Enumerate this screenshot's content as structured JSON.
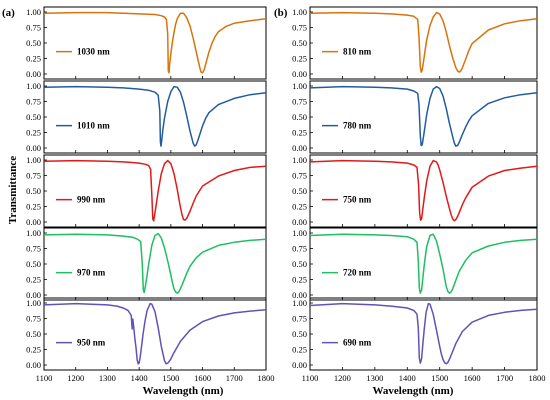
{
  "figure": {
    "ylabel": "Transmittance",
    "xlabel": "Wavelength (nm)",
    "panel_a_label": "(a)",
    "panel_b_label": "(b)"
  },
  "chart_data": [
    {
      "type": "line",
      "panel": "(a)",
      "xlabel": "Wavelength (nm)",
      "ylabel": "Transmittance",
      "xlim": [
        1100,
        1800
      ],
      "ylim": [
        0,
        1
      ],
      "xticks": [
        "1100",
        "1200",
        "1300",
        "1400",
        "1500",
        "1600",
        "1700",
        "1800"
      ],
      "yticks": [
        "0.00",
        "0.25",
        "0.50",
        "0.75",
        "1.00"
      ],
      "legend_placement": "lower-left",
      "series": [
        {
          "name": "1030 nm",
          "color": "#D9730D",
          "x": [
            1100,
            1200,
            1250,
            1300,
            1350,
            1400,
            1450,
            1470,
            1480,
            1486,
            1490,
            1492,
            1494,
            1496,
            1500,
            1505,
            1510,
            1515,
            1520,
            1530,
            1540,
            1550,
            1560,
            1570,
            1580,
            1590,
            1595,
            1600,
            1605,
            1610,
            1620,
            1630,
            1640,
            1650,
            1675,
            1700,
            1750,
            1800
          ],
          "y": [
            0.98,
            0.99,
            0.99,
            0.99,
            0.98,
            0.97,
            0.96,
            0.94,
            0.92,
            0.88,
            0.65,
            0.05,
            0.02,
            0.15,
            0.33,
            0.52,
            0.67,
            0.8,
            0.89,
            0.98,
            0.98,
            0.91,
            0.78,
            0.58,
            0.36,
            0.13,
            0.03,
            0.02,
            0.07,
            0.16,
            0.35,
            0.5,
            0.61,
            0.68,
            0.77,
            0.82,
            0.86,
            0.89
          ]
        },
        {
          "name": "1010 nm",
          "color": "#235C9E",
          "x": [
            1100,
            1200,
            1300,
            1350,
            1400,
            1430,
            1450,
            1460,
            1465,
            1467,
            1469,
            1471,
            1475,
            1480,
            1490,
            1500,
            1510,
            1520,
            1530,
            1540,
            1550,
            1560,
            1570,
            1575,
            1580,
            1585,
            1590,
            1600,
            1610,
            1620,
            1650,
            1700,
            1750,
            1800
          ],
          "y": [
            0.98,
            0.99,
            0.98,
            0.97,
            0.95,
            0.93,
            0.9,
            0.85,
            0.6,
            0.1,
            0.03,
            0.12,
            0.3,
            0.48,
            0.75,
            0.91,
            0.99,
            0.98,
            0.9,
            0.74,
            0.52,
            0.28,
            0.08,
            0.03,
            0.05,
            0.12,
            0.2,
            0.36,
            0.48,
            0.57,
            0.7,
            0.8,
            0.86,
            0.89
          ]
        },
        {
          "name": "990 nm",
          "color": "#E01A1A",
          "x": [
            1100,
            1200,
            1300,
            1350,
            1400,
            1420,
            1430,
            1436,
            1440,
            1443,
            1446,
            1450,
            1455,
            1460,
            1470,
            1480,
            1490,
            1500,
            1510,
            1520,
            1525,
            1530,
            1535,
            1540,
            1545,
            1550,
            1560,
            1570,
            1580,
            1600,
            1650,
            1700,
            1750,
            1800
          ],
          "y": [
            0.98,
            0.99,
            0.98,
            0.97,
            0.95,
            0.93,
            0.91,
            0.85,
            0.45,
            0.05,
            0.02,
            0.15,
            0.32,
            0.5,
            0.78,
            0.94,
            0.99,
            0.94,
            0.78,
            0.53,
            0.38,
            0.24,
            0.12,
            0.04,
            0.03,
            0.06,
            0.17,
            0.3,
            0.42,
            0.58,
            0.74,
            0.83,
            0.88,
            0.9
          ]
        },
        {
          "name": "970 nm",
          "color": "#1FBE62",
          "x": [
            1100,
            1200,
            1300,
            1350,
            1380,
            1395,
            1405,
            1410,
            1413,
            1416,
            1420,
            1425,
            1430,
            1440,
            1450,
            1460,
            1470,
            1480,
            1490,
            1500,
            1505,
            1510,
            1515,
            1520,
            1525,
            1530,
            1540,
            1550,
            1560,
            1580,
            1600,
            1650,
            1700,
            1750,
            1800
          ],
          "y": [
            0.97,
            0.98,
            0.97,
            0.95,
            0.93,
            0.9,
            0.86,
            0.5,
            0.08,
            0.04,
            0.15,
            0.32,
            0.5,
            0.8,
            0.96,
            0.99,
            0.92,
            0.76,
            0.55,
            0.32,
            0.2,
            0.1,
            0.05,
            0.03,
            0.05,
            0.1,
            0.22,
            0.35,
            0.46,
            0.6,
            0.69,
            0.8,
            0.85,
            0.88,
            0.9
          ]
        },
        {
          "name": "950 nm",
          "color": "#6251B8",
          "x": [
            1100,
            1150,
            1200,
            1250,
            1300,
            1330,
            1350,
            1365,
            1375,
            1378,
            1380,
            1383,
            1386,
            1390,
            1394,
            1397,
            1400,
            1403,
            1407,
            1412,
            1418,
            1425,
            1435,
            1440,
            1450,
            1460,
            1470,
            1480,
            1485,
            1490,
            1495,
            1500,
            1510,
            1530,
            1560,
            1600,
            1650,
            1700,
            1750,
            1800
          ],
          "y": [
            0.97,
            0.98,
            0.99,
            0.98,
            0.97,
            0.95,
            0.92,
            0.88,
            0.8,
            0.58,
            0.74,
            0.6,
            0.45,
            0.28,
            0.08,
            0.02,
            0.03,
            0.12,
            0.28,
            0.48,
            0.7,
            0.88,
            0.99,
            0.98,
            0.86,
            0.6,
            0.3,
            0.07,
            0.02,
            0.03,
            0.06,
            0.1,
            0.2,
            0.38,
            0.56,
            0.7,
            0.79,
            0.84,
            0.87,
            0.89
          ]
        }
      ]
    },
    {
      "type": "line",
      "panel": "(b)",
      "xlabel": "Wavelength (nm)",
      "ylabel": "",
      "xlim": [
        1100,
        1800
      ],
      "ylim": [
        0,
        1
      ],
      "xticks": [
        "1100",
        "1200",
        "1300",
        "1400",
        "1500",
        "1600",
        "1700",
        "1800"
      ],
      "yticks": [
        "0.00",
        "0.25",
        "0.50",
        "0.75",
        "1.00"
      ],
      "legend_placement": "lower-left",
      "series": [
        {
          "name": "810 nm",
          "color": "#D9730D",
          "x": [
            1100,
            1200,
            1300,
            1350,
            1400,
            1420,
            1432,
            1436,
            1440,
            1443,
            1446,
            1450,
            1455,
            1460,
            1470,
            1480,
            1490,
            1500,
            1510,
            1520,
            1530,
            1540,
            1550,
            1555,
            1560,
            1565,
            1570,
            1575,
            1580,
            1590,
            1600,
            1650,
            1700,
            1750,
            1800
          ],
          "y": [
            0.98,
            0.99,
            0.98,
            0.97,
            0.95,
            0.93,
            0.88,
            0.6,
            0.12,
            0.03,
            0.06,
            0.2,
            0.38,
            0.55,
            0.78,
            0.92,
            0.99,
            0.97,
            0.86,
            0.68,
            0.46,
            0.26,
            0.1,
            0.05,
            0.03,
            0.05,
            0.1,
            0.17,
            0.24,
            0.38,
            0.49,
            0.71,
            0.81,
            0.86,
            0.89
          ]
        },
        {
          "name": "780 nm",
          "color": "#235C9E",
          "x": [
            1100,
            1200,
            1300,
            1350,
            1400,
            1420,
            1432,
            1436,
            1440,
            1443,
            1446,
            1450,
            1455,
            1460,
            1470,
            1480,
            1490,
            1500,
            1510,
            1520,
            1530,
            1540,
            1545,
            1550,
            1555,
            1560,
            1570,
            1580,
            1590,
            1600,
            1650,
            1700,
            1750,
            1800
          ],
          "y": [
            0.97,
            0.99,
            0.98,
            0.97,
            0.95,
            0.92,
            0.88,
            0.7,
            0.2,
            0.04,
            0.05,
            0.18,
            0.36,
            0.54,
            0.8,
            0.95,
            0.99,
            0.96,
            0.84,
            0.64,
            0.4,
            0.18,
            0.08,
            0.03,
            0.04,
            0.09,
            0.22,
            0.34,
            0.44,
            0.52,
            0.72,
            0.81,
            0.86,
            0.89
          ]
        },
        {
          "name": "750 nm",
          "color": "#E01A1A",
          "x": [
            1100,
            1200,
            1300,
            1350,
            1400,
            1420,
            1430,
            1435,
            1438,
            1441,
            1444,
            1448,
            1453,
            1460,
            1470,
            1480,
            1490,
            1495,
            1500,
            1510,
            1520,
            1530,
            1535,
            1540,
            1545,
            1550,
            1555,
            1560,
            1570,
            1580,
            1600,
            1650,
            1700,
            1750,
            1800
          ],
          "y": [
            0.97,
            0.99,
            0.98,
            0.97,
            0.95,
            0.92,
            0.88,
            0.6,
            0.15,
            0.03,
            0.05,
            0.22,
            0.42,
            0.66,
            0.9,
            0.99,
            0.97,
            0.92,
            0.84,
            0.64,
            0.42,
            0.22,
            0.12,
            0.05,
            0.02,
            0.04,
            0.09,
            0.15,
            0.28,
            0.39,
            0.56,
            0.74,
            0.83,
            0.87,
            0.9
          ]
        },
        {
          "name": "720 nm",
          "color": "#1FBE62",
          "x": [
            1100,
            1200,
            1300,
            1350,
            1400,
            1420,
            1430,
            1434,
            1437,
            1440,
            1444,
            1448,
            1453,
            1460,
            1470,
            1480,
            1490,
            1500,
            1510,
            1515,
            1520,
            1525,
            1530,
            1535,
            1540,
            1550,
            1560,
            1580,
            1600,
            1650,
            1700,
            1750,
            1800
          ],
          "y": [
            0.96,
            0.98,
            0.97,
            0.96,
            0.94,
            0.9,
            0.85,
            0.55,
            0.12,
            0.03,
            0.08,
            0.28,
            0.52,
            0.78,
            0.96,
            0.98,
            0.87,
            0.66,
            0.42,
            0.28,
            0.14,
            0.06,
            0.03,
            0.05,
            0.1,
            0.24,
            0.38,
            0.56,
            0.68,
            0.79,
            0.85,
            0.88,
            0.9
          ]
        },
        {
          "name": "690 nm",
          "color": "#6251B8",
          "x": [
            1100,
            1200,
            1300,
            1350,
            1400,
            1420,
            1430,
            1434,
            1437,
            1440,
            1444,
            1448,
            1453,
            1458,
            1465,
            1470,
            1480,
            1490,
            1500,
            1505,
            1510,
            1515,
            1520,
            1525,
            1530,
            1540,
            1550,
            1570,
            1600,
            1650,
            1700,
            1750,
            1800
          ],
          "y": [
            0.96,
            0.99,
            0.97,
            0.95,
            0.92,
            0.88,
            0.82,
            0.6,
            0.12,
            0.03,
            0.1,
            0.35,
            0.62,
            0.85,
            0.99,
            0.98,
            0.82,
            0.56,
            0.3,
            0.18,
            0.09,
            0.04,
            0.02,
            0.04,
            0.09,
            0.22,
            0.35,
            0.54,
            0.69,
            0.8,
            0.85,
            0.88,
            0.9
          ]
        }
      ]
    }
  ]
}
